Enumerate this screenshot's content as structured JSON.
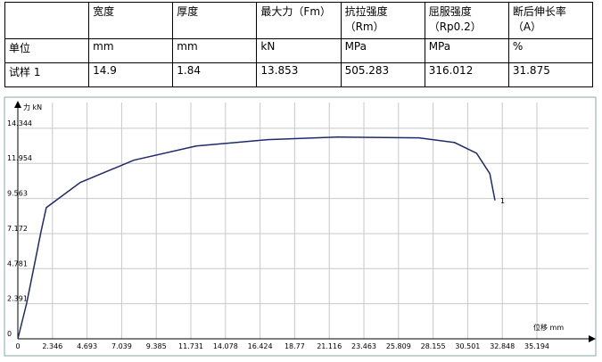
{
  "table": {
    "rows": [
      [
        null,
        "宽度",
        "厚度",
        "最大力（Fm）",
        "抗拉强度（Rm）",
        "屈服强度（Rp0.2）",
        "断后伸长率（A）"
      ],
      [
        "单位",
        "mm",
        "mm",
        "kN",
        "MPa",
        "MPa",
        "%"
      ],
      [
        "试样 1",
        "14.9",
        "1.84",
        "13.853",
        "505.283",
        "316.012",
        "31.875"
      ]
    ]
  },
  "chart_data": {
    "type": "line",
    "ylabel": "力 kN",
    "xlabel": "位移 mm",
    "curve_label": "1",
    "xlim": [
      0,
      38.7
    ],
    "ylim": [
      0,
      16.1
    ],
    "xticks": [
      0,
      2.346,
      4.693,
      7.039,
      9.385,
      11.731,
      14.078,
      16.424,
      18.77,
      21.116,
      23.463,
      25.809,
      28.155,
      30.501,
      32.848,
      35.194
    ],
    "yticks": [
      0,
      2.391,
      4.781,
      7.172,
      9.563,
      11.954,
      14.344
    ],
    "grid": true,
    "series": [
      {
        "color": "#1f2a6b",
        "x": [
          0,
          0.6,
          1.21,
          1.57,
          1.93,
          4.23,
          7.86,
          12.09,
          16.93,
          21.77,
          27.2,
          29.6,
          31.1,
          32.0,
          32.35
        ],
        "values": [
          0,
          2.43,
          5.48,
          7.3,
          8.94,
          10.65,
          12.17,
          13.14,
          13.57,
          13.75,
          13.69,
          13.38,
          12.65,
          11.26,
          9.43
        ]
      }
    ]
  }
}
